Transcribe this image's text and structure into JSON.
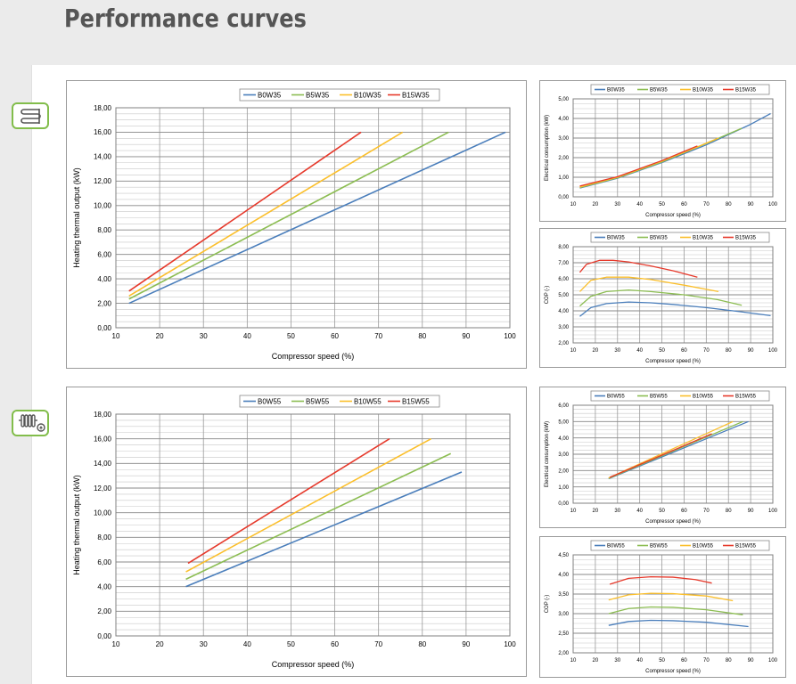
{
  "page": {
    "title": "Performance curves"
  },
  "icons": {
    "floor_heating": "floor-heating-icon",
    "radiator": "radiator-icon"
  },
  "colors": {
    "B0": "#4a7ebb",
    "B5": "#8cbd52",
    "B10": "#fbbf2b",
    "B15": "#e6392b"
  },
  "chart_data": [
    {
      "id": "w35-output",
      "type": "line",
      "xlabel": "Compressor speed (%)",
      "ylabel": "Heating thermal output (kW)",
      "xlim": [
        10,
        100
      ],
      "ylim": [
        0,
        18
      ],
      "ystep": 2,
      "xstep": 10,
      "yminor": 0.5,
      "ydec": 2,
      "yticks": [
        "0,00",
        "2,00",
        "4,00",
        "6,00",
        "8,00",
        "10,00",
        "12,00",
        "14,00",
        "16,00",
        "18,00"
      ],
      "xticks": [
        "10",
        "20",
        "30",
        "40",
        "50",
        "60",
        "70",
        "80",
        "90",
        "100"
      ],
      "series": [
        {
          "name": "B0W35",
          "x": [
            13,
            99
          ],
          "y": [
            2.0,
            16.0
          ]
        },
        {
          "name": "B5W35",
          "x": [
            13,
            86
          ],
          "y": [
            2.35,
            16.0
          ]
        },
        {
          "name": "B10W35",
          "x": [
            13,
            75.5
          ],
          "y": [
            2.6,
            16.0
          ]
        },
        {
          "name": "B15W35",
          "x": [
            13,
            66
          ],
          "y": [
            3.0,
            16.0
          ]
        }
      ]
    },
    {
      "id": "w35-power",
      "type": "line",
      "xlabel": "Compressor speed (%)",
      "ylabel": "Electrical consumption (kW)",
      "xlim": [
        10,
        100
      ],
      "ylim": [
        0,
        5
      ],
      "ystep": 1,
      "xstep": 10,
      "yminor": 0.25,
      "ydec": 2,
      "yticks": [
        "0,00",
        "1,00",
        "2,00",
        "3,00",
        "4,00",
        "5,00"
      ],
      "xticks": [
        "10",
        "20",
        "30",
        "40",
        "50",
        "60",
        "70",
        "80",
        "90",
        "100"
      ],
      "series": [
        {
          "name": "B0W35",
          "x": [
            13,
            30,
            50,
            70,
            90,
            99
          ],
          "y": [
            0.45,
            0.95,
            1.75,
            2.65,
            3.7,
            4.25
          ]
        },
        {
          "name": "B5W35",
          "x": [
            13,
            30,
            50,
            70,
            86
          ],
          "y": [
            0.47,
            0.97,
            1.78,
            2.72,
            3.5
          ]
        },
        {
          "name": "B10W35",
          "x": [
            13,
            30,
            50,
            65,
            75.5
          ],
          "y": [
            0.5,
            1.0,
            1.82,
            2.5,
            3.0
          ]
        },
        {
          "name": "B15W35",
          "x": [
            13,
            30,
            50,
            66
          ],
          "y": [
            0.55,
            1.03,
            1.85,
            2.6
          ]
        }
      ]
    },
    {
      "id": "w35-cop",
      "type": "line",
      "xlabel": "Compressor speed (%)",
      "ylabel": "COP (-)",
      "xlim": [
        10,
        100
      ],
      "ylim": [
        2,
        8
      ],
      "ystep": 1,
      "xstep": 10,
      "yminor": 0.25,
      "ydec": 2,
      "yticks": [
        "2,00",
        "3,00",
        "4,00",
        "5,00",
        "6,00",
        "7,00",
        "8,00"
      ],
      "xticks": [
        "10",
        "20",
        "30",
        "40",
        "50",
        "60",
        "70",
        "80",
        "90",
        "100"
      ],
      "series": [
        {
          "name": "B0W35",
          "x": [
            13,
            18,
            25,
            35,
            45,
            55,
            70,
            85,
            99
          ],
          "y": [
            3.65,
            4.2,
            4.45,
            4.55,
            4.5,
            4.4,
            4.2,
            3.95,
            3.7
          ]
        },
        {
          "name": "B5W35",
          "x": [
            13,
            18,
            25,
            35,
            45,
            60,
            75,
            86
          ],
          "y": [
            4.3,
            4.9,
            5.2,
            5.3,
            5.2,
            5.0,
            4.7,
            4.35
          ]
        },
        {
          "name": "B10W35",
          "x": [
            13,
            18,
            25,
            35,
            45,
            60,
            75.5
          ],
          "y": [
            5.2,
            5.9,
            6.1,
            6.1,
            5.95,
            5.6,
            5.2
          ]
        },
        {
          "name": "B15W35",
          "x": [
            13,
            16,
            22,
            28,
            35,
            45,
            55,
            66
          ],
          "y": [
            6.4,
            6.9,
            7.15,
            7.15,
            7.05,
            6.8,
            6.5,
            6.1
          ]
        }
      ]
    },
    {
      "id": "w55-output",
      "type": "line",
      "xlabel": "Compressor speed (%)",
      "ylabel": "Heating thermal output (kW)",
      "xlim": [
        10,
        100
      ],
      "ylim": [
        0,
        18
      ],
      "ystep": 2,
      "xstep": 10,
      "yminor": 0.5,
      "ydec": 2,
      "yticks": [
        "0,00",
        "2,00",
        "4,00",
        "6,00",
        "8,00",
        "10,00",
        "12,00",
        "14,00",
        "16,00",
        "18,00"
      ],
      "xticks": [
        "10",
        "20",
        "30",
        "40",
        "50",
        "60",
        "70",
        "80",
        "90",
        "100"
      ],
      "series": [
        {
          "name": "B0W55",
          "x": [
            26,
            89
          ],
          "y": [
            4.0,
            13.3
          ]
        },
        {
          "name": "B5W55",
          "x": [
            26,
            86.5
          ],
          "y": [
            4.6,
            14.8
          ]
        },
        {
          "name": "B10W55",
          "x": [
            26,
            82
          ],
          "y": [
            5.2,
            16.0
          ]
        },
        {
          "name": "B15W55",
          "x": [
            26.5,
            72.5
          ],
          "y": [
            5.9,
            16.0
          ]
        }
      ]
    },
    {
      "id": "w55-power",
      "type": "line",
      "xlabel": "Compressor speed (%)",
      "ylabel": "Electrical consumption (kW)",
      "xlim": [
        10,
        100
      ],
      "ylim": [
        0,
        6
      ],
      "ystep": 1,
      "xstep": 10,
      "yminor": 0.25,
      "ydec": 2,
      "yticks": [
        "0,00",
        "1,00",
        "2,00",
        "3,00",
        "4,00",
        "5,00",
        "6,00"
      ],
      "xticks": [
        "10",
        "20",
        "30",
        "40",
        "50",
        "60",
        "70",
        "80",
        "90",
        "100"
      ],
      "series": [
        {
          "name": "B0W55",
          "x": [
            26,
            89
          ],
          "y": [
            1.5,
            5.0
          ]
        },
        {
          "name": "B5W55",
          "x": [
            26,
            86.5
          ],
          "y": [
            1.52,
            5.0
          ]
        },
        {
          "name": "B10W55",
          "x": [
            26,
            82
          ],
          "y": [
            1.55,
            5.0
          ]
        },
        {
          "name": "B15W55",
          "x": [
            26.5,
            72.5
          ],
          "y": [
            1.58,
            4.25
          ]
        }
      ]
    },
    {
      "id": "w55-cop",
      "type": "line",
      "xlabel": "Compressor speed (%)",
      "ylabel": "COP (-)",
      "xlim": [
        10,
        100
      ],
      "ylim": [
        2,
        4.5
      ],
      "ystep": 0.5,
      "xstep": 10,
      "yminor": 0.125,
      "ydec": 2,
      "yticks": [
        "2,00",
        "2,50",
        "3,00",
        "3,50",
        "4,00",
        "4,50"
      ],
      "xticks": [
        "10",
        "20",
        "30",
        "40",
        "50",
        "60",
        "70",
        "80",
        "90",
        "100"
      ],
      "series": [
        {
          "name": "B0W55",
          "x": [
            26,
            35,
            45,
            55,
            70,
            89
          ],
          "y": [
            2.7,
            2.8,
            2.83,
            2.82,
            2.78,
            2.67
          ]
        },
        {
          "name": "B5W55",
          "x": [
            26,
            35,
            45,
            55,
            70,
            86.5
          ],
          "y": [
            3.0,
            3.13,
            3.17,
            3.16,
            3.1,
            2.97
          ]
        },
        {
          "name": "B10W55",
          "x": [
            26,
            35,
            45,
            55,
            70,
            82
          ],
          "y": [
            3.35,
            3.48,
            3.52,
            3.51,
            3.45,
            3.33
          ]
        },
        {
          "name": "B15W55",
          "x": [
            26.5,
            35,
            45,
            55,
            65,
            72.5
          ],
          "y": [
            3.75,
            3.9,
            3.94,
            3.93,
            3.87,
            3.78
          ]
        }
      ]
    }
  ]
}
